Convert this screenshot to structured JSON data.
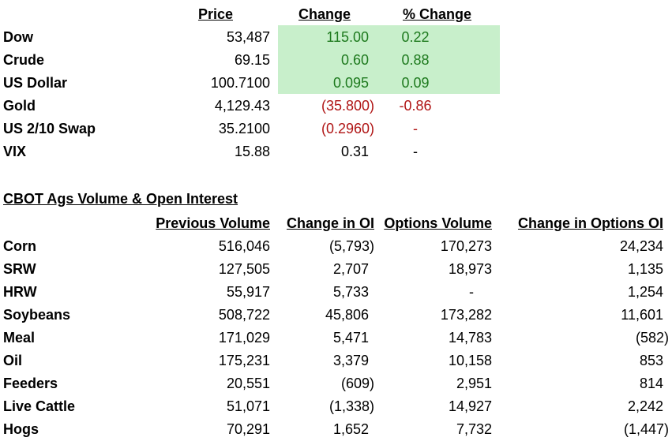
{
  "market": {
    "headers": {
      "price": "Price",
      "change": "Change",
      "pct_change": "% Change"
    },
    "rows": [
      {
        "name": "Dow",
        "price": "53,487",
        "change": "115.00",
        "pct": "0.22",
        "status": "up"
      },
      {
        "name": "Crude",
        "price": "69.15",
        "change": "0.60",
        "pct": "0.88",
        "status": "up"
      },
      {
        "name": "US Dollar",
        "price": "100.7100",
        "change": "0.095",
        "pct": "0.09",
        "status": "up"
      },
      {
        "name": "Gold",
        "price": "4,129.43",
        "change": "(35.800)",
        "pct": "-0.86",
        "status": "down"
      },
      {
        "name": "US 2/10 Swap",
        "price": "35.2100",
        "change": "(0.2960)",
        "pct": "-",
        "status": "down"
      },
      {
        "name": "VIX",
        "price": "15.88",
        "change": "0.31",
        "pct": "-",
        "status": "neutral"
      }
    ]
  },
  "ags": {
    "title": "CBOT Ags Volume & Open Interest",
    "headers": {
      "prev_volume": "Previous Volume",
      "change_oi": "Change in OI",
      "options_volume": "Options Volume",
      "change_options_oi": "Change in Options OI"
    },
    "rows": [
      {
        "name": "Corn",
        "prev_volume": "516,046",
        "change_oi": "(5,793)",
        "options_volume": "170,273",
        "change_options_oi": "24,234"
      },
      {
        "name": "SRW",
        "prev_volume": "127,505",
        "change_oi": "2,707",
        "options_volume": "18,973",
        "change_options_oi": "1,135"
      },
      {
        "name": "HRW",
        "prev_volume": "55,917",
        "change_oi": "5,733",
        "options_volume": "-",
        "change_options_oi": "1,254"
      },
      {
        "name": "Soybeans",
        "prev_volume": "508,722",
        "change_oi": "45,806",
        "options_volume": "173,282",
        "change_options_oi": "11,601"
      },
      {
        "name": "Meal",
        "prev_volume": "171,029",
        "change_oi": "5,471",
        "options_volume": "14,783",
        "change_options_oi": "(582)"
      },
      {
        "name": "Oil",
        "prev_volume": "175,231",
        "change_oi": "3,379",
        "options_volume": "10,158",
        "change_options_oi": "853"
      },
      {
        "name": "Feeders",
        "prev_volume": "20,551",
        "change_oi": "(609)",
        "options_volume": "2,951",
        "change_options_oi": "814"
      },
      {
        "name": "Live Cattle",
        "prev_volume": "51,071",
        "change_oi": "(1,338)",
        "options_volume": "14,927",
        "change_options_oi": "2,242"
      },
      {
        "name": "Hogs",
        "prev_volume": "70,291",
        "change_oi": "1,652",
        "options_volume": "7,732",
        "change_options_oi": "(1,447)"
      }
    ]
  },
  "colors": {
    "up_text": "#1e7a1e",
    "down_text": "#b01515",
    "up_fill": "#c8efcb"
  }
}
